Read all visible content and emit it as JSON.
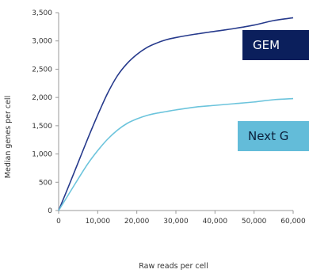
{
  "chart_data": {
    "type": "line",
    "xlabel": "Raw reads per cell",
    "ylabel": "Median genes per cell",
    "xlim": [
      0,
      60000
    ],
    "ylim": [
      0,
      3500
    ],
    "x_ticks": [
      "0",
      "10,000",
      "20,000",
      "30,000",
      "40,000",
      "50,000",
      "60,000"
    ],
    "y_ticks": [
      "0",
      "500",
      "1,000",
      "1,500",
      "2,000",
      "2,500",
      "3,000",
      "3,500"
    ],
    "grid": false,
    "series": [
      {
        "name": "GEM",
        "color": "#263a8c",
        "x": [
          0,
          2500,
          5000,
          7500,
          10000,
          12500,
          15000,
          17500,
          20000,
          22500,
          25000,
          27500,
          30000,
          35000,
          40000,
          45000,
          50000,
          55000,
          60000
        ],
        "y": [
          0,
          420,
          850,
          1280,
          1690,
          2070,
          2380,
          2600,
          2760,
          2880,
          2960,
          3020,
          3060,
          3120,
          3170,
          3220,
          3280,
          3360,
          3410
        ]
      },
      {
        "name": "Next G",
        "color": "#6cc4dc",
        "x": [
          0,
          2500,
          5000,
          7500,
          10000,
          12500,
          15000,
          17500,
          20000,
          22500,
          25000,
          27500,
          30000,
          35000,
          40000,
          45000,
          50000,
          55000,
          60000
        ],
        "y": [
          0,
          280,
          560,
          830,
          1060,
          1260,
          1420,
          1540,
          1620,
          1680,
          1720,
          1750,
          1780,
          1830,
          1860,
          1890,
          1920,
          1960,
          1980
        ]
      }
    ]
  },
  "legend": {
    "gem_label": "GEM",
    "nextg_label": "Next G"
  }
}
